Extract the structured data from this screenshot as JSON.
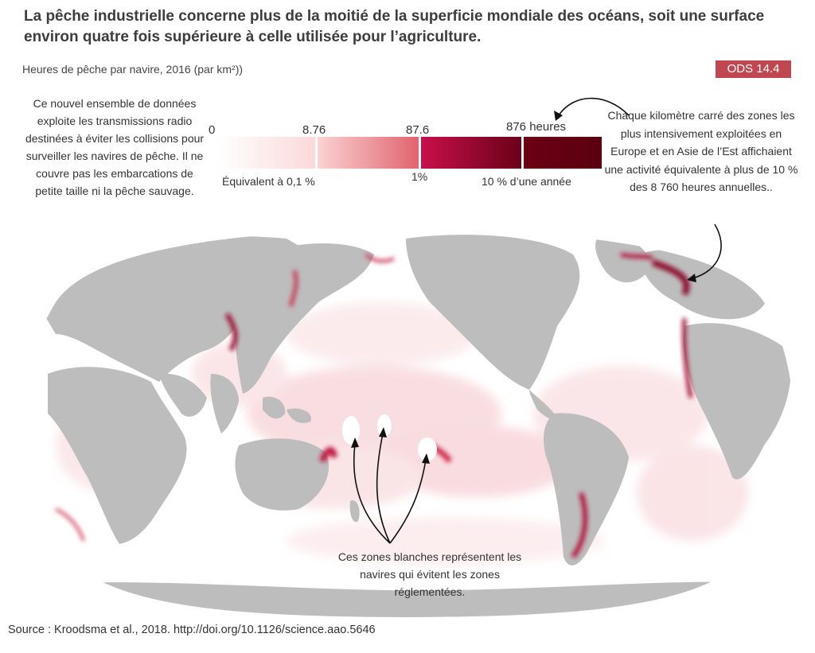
{
  "title": "La pêche industrielle concerne plus de la moitié de la superficie mondiale des océans, soit une surface environ quatre fois supérieure à celle utilisée pour l’agriculture.",
  "subtitle": "Heures de pêche par navire, 2016 (par km²))",
  "badge": "ODS 14.4",
  "notes": {
    "left": "Ce nouvel ensemble de données exploite les transmissions radio destinées à éviter les collisions pour surveiller les navires de pêche. Il ne couvre pas les embarcations de petite taille ni la pêche sauvage.",
    "right": "Chaque kilomètre carré des zones les plus intensivement exploitées en Europe et en Asie de l’Est affichaient une activité équivalente à plus de 10 % des 8 760 heures annuelles..",
    "bottom": "Ces zones blanches représentent les navires qui évitent les zones réglementées."
  },
  "legend": {
    "ticks": [
      "0",
      "8.76",
      "87.6",
      "876 heures"
    ],
    "equivalents": [
      "Équivalent à  0,1 %",
      "1%",
      "10 % d’une année"
    ],
    "colors": [
      "#fbe3e3",
      "#e88f98",
      "#c4174a",
      "#5c0010"
    ]
  },
  "source": "Source : Kroodsma et al., 2018. http://doi.org/10.1126/science.aao.5646",
  "colors": {
    "land": "#bdbdbd",
    "ocean": "#ffffff",
    "fishing_light": "#f2b7bd",
    "fishing_dark": "#b0173c",
    "badge": "#c0474f"
  }
}
